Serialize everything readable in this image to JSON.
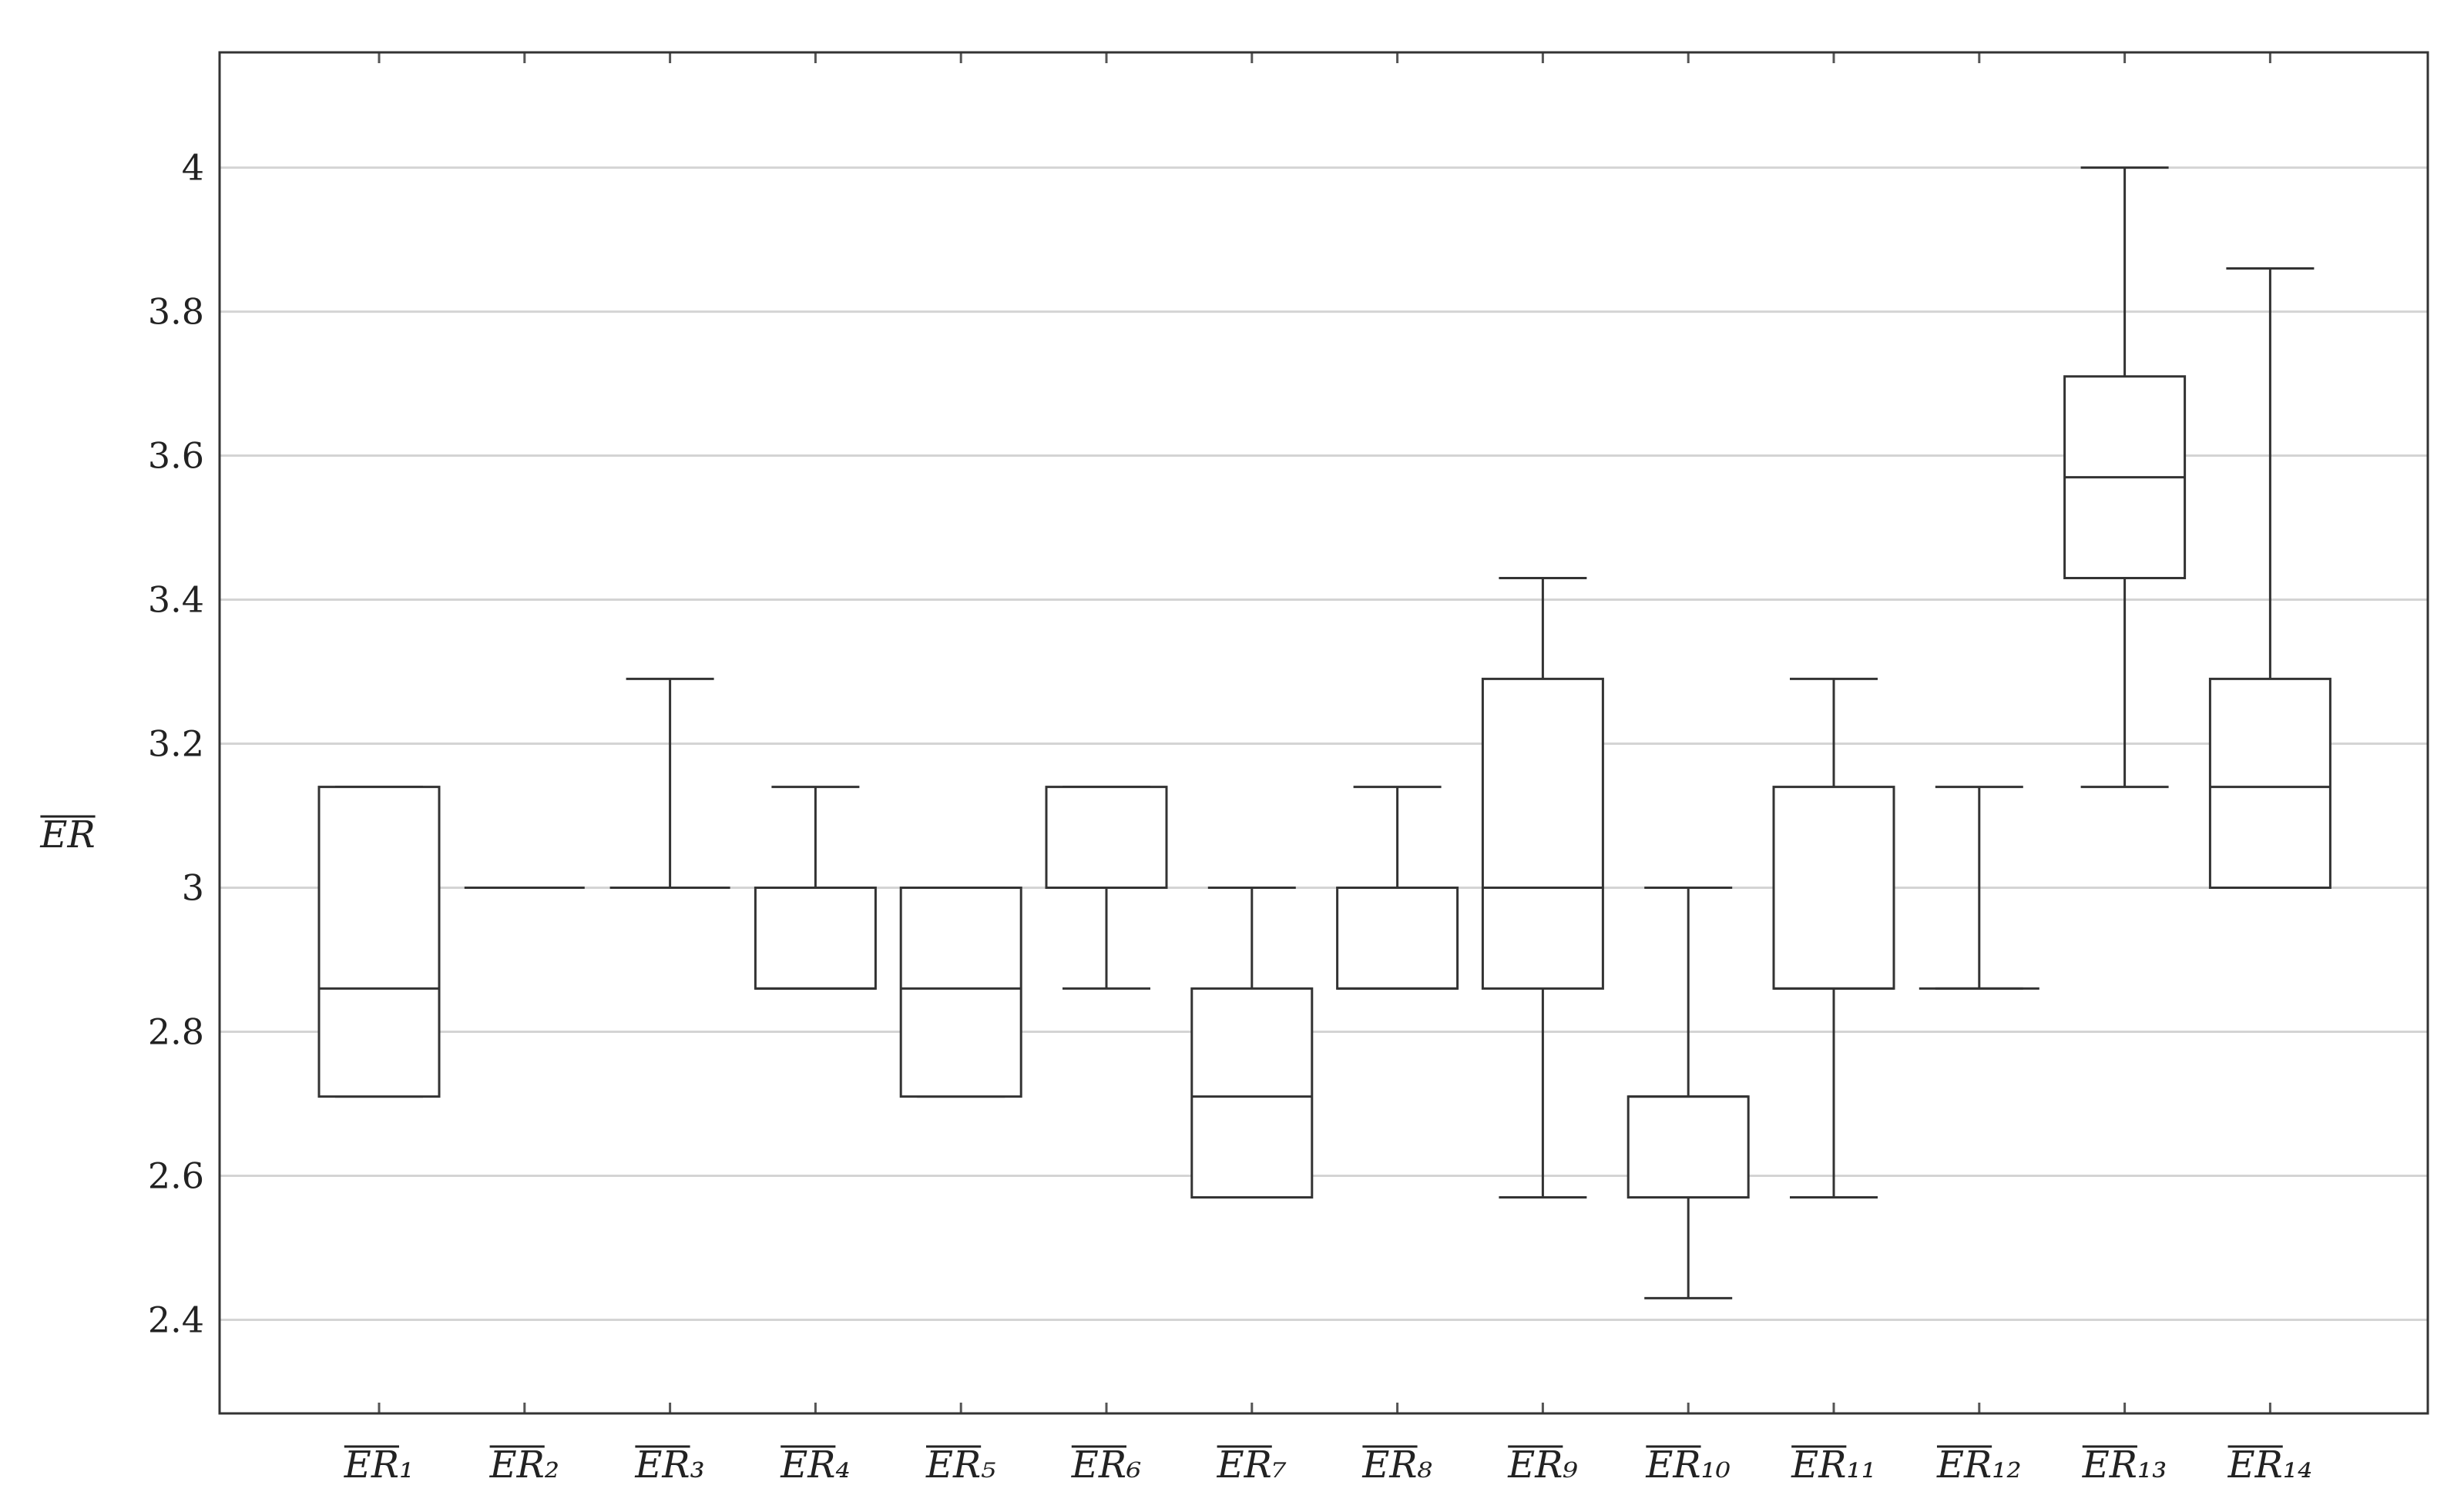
{
  "chart_data": {
    "type": "box",
    "y_label": "ER",
    "categories": [
      "ER₁",
      "ER₂",
      "ER₃",
      "ER₄",
      "ER₅",
      "ER₆",
      "ER₇",
      "ER₈",
      "ER₉",
      "ER₁₀",
      "ER₁₁",
      "ER₁₂",
      "ER₁₃",
      "ER₁₄"
    ],
    "boxes": [
      {
        "min": 2.71,
        "q1": 2.71,
        "median": 2.86,
        "q3": 3.14,
        "max": 3.14
      },
      {
        "min": 3,
        "q1": 3,
        "median": 3,
        "q3": 3,
        "max": 3
      },
      {
        "min": 3,
        "q1": 3,
        "median": 3,
        "q3": 3,
        "max": 3.29
      },
      {
        "min": 2.86,
        "q1": 2.86,
        "median": 2.86,
        "q3": 3,
        "max": 3.14
      },
      {
        "min": 2.71,
        "q1": 2.71,
        "median": 2.86,
        "q3": 3,
        "max": 3
      },
      {
        "min": 2.86,
        "q1": 3,
        "median": 3,
        "q3": 3.14,
        "max": 3.14
      },
      {
        "min": 2.57,
        "q1": 2.57,
        "median": 2.71,
        "q3": 2.86,
        "max": 3
      },
      {
        "min": 2.86,
        "q1": 2.86,
        "median": 2.86,
        "q3": 3,
        "max": 3.14
      },
      {
        "min": 2.57,
        "q1": 2.86,
        "median": 3,
        "q3": 3.29,
        "max": 3.43
      },
      {
        "min": 2.43,
        "q1": 2.57,
        "median": 2.71,
        "q3": 2.71,
        "max": 3
      },
      {
        "min": 2.57,
        "q1": 2.86,
        "median": 2.86,
        "q3": 3.14,
        "max": 3.29
      },
      {
        "min": 2.86,
        "q1": 2.86,
        "median": 2.86,
        "q3": 2.86,
        "max": 3.14
      },
      {
        "min": 3.14,
        "q1": 3.43,
        "median": 3.57,
        "q3": 3.71,
        "max": 4
      },
      {
        "min": 3,
        "q1": 3,
        "median": 3.14,
        "q3": 3.29,
        "max": 3.86
      }
    ],
    "color": "#333333",
    "ylim": [
      2.27,
      4.16
    ],
    "yticks": [
      2.4,
      2.6,
      2.8,
      3,
      3.2,
      3.4,
      3.6,
      3.8,
      4
    ],
    "grid": true
  }
}
